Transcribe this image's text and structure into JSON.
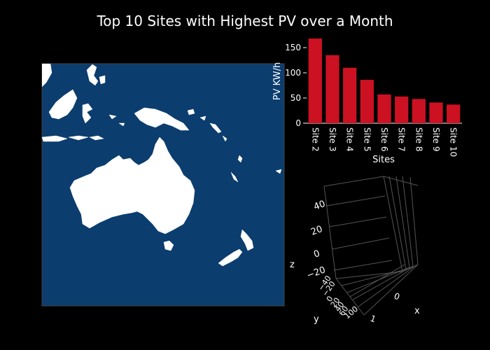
{
  "title": "Top 10 Sites with Highest PV over a Month",
  "colors": {
    "background": "#000000",
    "bar": "#cc1122",
    "ocean": "#0b3d6e",
    "land": "#ffffff",
    "axis": "#ffffff",
    "grid3d": "#555555"
  },
  "chart_data": [
    {
      "type": "bar",
      "categories": [
        "Site 2",
        "Site 3",
        "Site 4",
        "Site 5",
        "Site 6",
        "Site 7",
        "Site 8",
        "Site 9",
        "Site 10"
      ],
      "values": [
        168,
        135,
        110,
        86,
        57,
        53,
        48,
        41,
        37
      ],
      "xlabel": "Sites",
      "ylabel": "PV KW/h",
      "ylim": [
        0,
        175
      ],
      "yticks": [
        0,
        50,
        100,
        150
      ],
      "grid": false
    },
    {
      "type": "map",
      "region": "Oceania / Australia"
    },
    {
      "type": "scatter3d",
      "xlabel": "x",
      "ylabel": "y",
      "zlabel": "z",
      "zticks": [
        "40",
        "20",
        "0",
        "−20"
      ],
      "xticks": [
        "1",
        "0"
      ],
      "yticks_visible": "−40 … 100 (overlapping)",
      "points": []
    }
  ]
}
